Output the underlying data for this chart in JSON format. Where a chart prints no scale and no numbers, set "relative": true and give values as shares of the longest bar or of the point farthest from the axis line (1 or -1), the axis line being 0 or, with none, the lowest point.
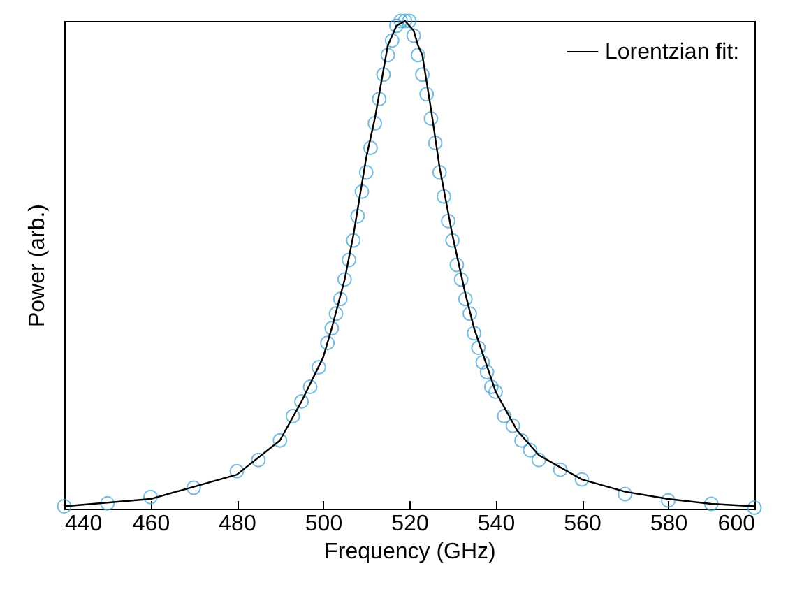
{
  "chart_data": {
    "type": "scatter",
    "xlabel": "Frequency (GHz)",
    "ylabel": "Power (arb.)",
    "relative": true,
    "xlim": [
      440,
      600
    ],
    "xticks": [
      440,
      460,
      480,
      500,
      520,
      540,
      560,
      580,
      600
    ],
    "grid": false,
    "legend": "top right",
    "marker": "circle",
    "color": "#3ca0d0",
    "x": [
      440,
      450,
      460,
      470,
      480,
      485,
      490,
      493,
      495,
      497,
      499,
      501,
      502,
      503,
      504,
      505,
      506,
      507,
      508,
      509,
      510,
      511,
      512,
      513,
      514,
      515,
      516,
      517,
      518,
      519,
      520,
      521,
      522,
      523,
      524,
      525,
      526,
      527,
      528,
      529,
      530,
      531,
      532,
      533,
      534,
      535,
      536,
      537,
      538,
      539,
      540,
      542,
      544,
      546,
      548,
      550,
      555,
      560,
      570,
      580,
      590,
      600
    ],
    "values": [
      0.005,
      0.011,
      0.024,
      0.043,
      0.077,
      0.1,
      0.14,
      0.19,
      0.22,
      0.25,
      0.29,
      0.34,
      0.37,
      0.4,
      0.43,
      0.47,
      0.51,
      0.55,
      0.6,
      0.65,
      0.69,
      0.74,
      0.79,
      0.84,
      0.89,
      0.93,
      0.96,
      0.99,
      1.0,
      1.0,
      1.0,
      0.97,
      0.93,
      0.89,
      0.85,
      0.8,
      0.75,
      0.69,
      0.64,
      0.59,
      0.55,
      0.5,
      0.47,
      0.43,
      0.4,
      0.36,
      0.33,
      0.3,
      0.28,
      0.25,
      0.24,
      0.19,
      0.17,
      0.14,
      0.12,
      0.1,
      0.08,
      0.06,
      0.03,
      0.017,
      0.01,
      0.002
    ],
    "series": [
      {
        "type": "line",
        "name": "Lorentzian fit:",
        "color": "#000000",
        "marker": "none",
        "x": [
          440,
          460,
          480,
          490,
          495,
          500,
          502,
          505,
          507,
          510,
          512,
          514,
          515,
          516,
          517,
          519,
          521,
          522,
          523,
          525,
          527,
          530,
          533,
          535,
          540,
          545,
          550,
          560,
          570,
          580,
          590,
          600
        ],
        "values": [
          0.005,
          0.02,
          0.07,
          0.14,
          0.22,
          0.31,
          0.37,
          0.47,
          0.56,
          0.72,
          0.8,
          0.9,
          0.95,
          0.97,
          0.99,
          1.0,
          0.98,
          0.95,
          0.93,
          0.82,
          0.7,
          0.56,
          0.44,
          0.37,
          0.24,
          0.16,
          0.11,
          0.06,
          0.035,
          0.02,
          0.01,
          0.005
        ]
      }
    ]
  }
}
